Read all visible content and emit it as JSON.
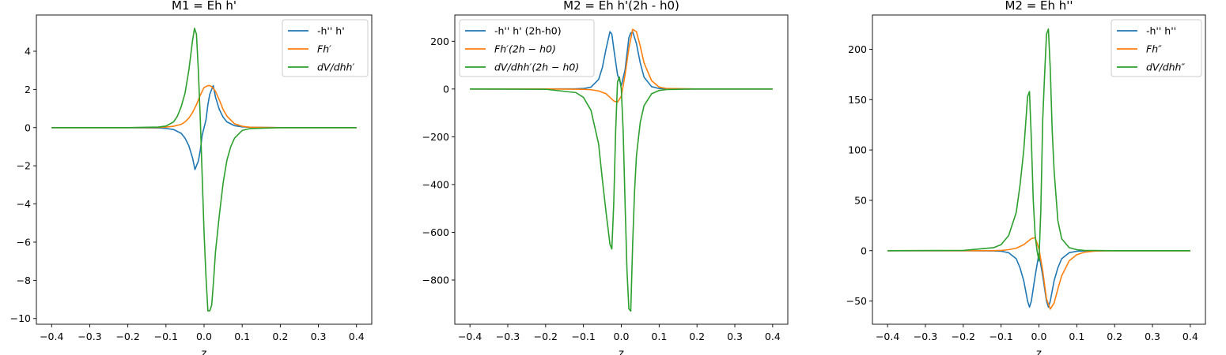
{
  "chart_data": [
    {
      "type": "line",
      "title": "M1 = Eh h'",
      "xlabel": "z",
      "ylabel": "",
      "xlim": [
        -0.44,
        0.44
      ],
      "ylim": [
        -10.3,
        5.9
      ],
      "xticks": [
        -0.4,
        -0.3,
        -0.2,
        -0.1,
        0.0,
        0.1,
        0.2,
        0.3,
        0.4
      ],
      "xtick_labels": [
        "−0.4",
        "−0.3",
        "−0.2",
        "−0.1",
        "0.0",
        "0.1",
        "0.2",
        "0.3",
        "0.4"
      ],
      "yticks": [
        -10,
        -8,
        -6,
        -4,
        -2,
        0,
        2,
        4
      ],
      "ytick_labels": [
        "−10",
        "−8",
        "−6",
        "−4",
        "−2",
        "0",
        "2",
        "4"
      ],
      "legend_position": "top-right",
      "series": [
        {
          "name": "-h'' h'",
          "color": "#1f77b4",
          "x": [
            -0.4,
            -0.2,
            -0.12,
            -0.1,
            -0.08,
            -0.06,
            -0.05,
            -0.04,
            -0.03,
            -0.024,
            -0.02,
            -0.015,
            -0.01,
            -0.005,
            0.0,
            0.005,
            0.01,
            0.015,
            0.02,
            0.024,
            0.03,
            0.04,
            0.05,
            0.06,
            0.08,
            0.1,
            0.12,
            0.2,
            0.4
          ],
          "y": [
            0,
            0,
            -0.02,
            -0.04,
            -0.1,
            -0.3,
            -0.55,
            -0.95,
            -1.6,
            -2.2,
            -2.0,
            -1.75,
            -1.2,
            -0.4,
            0,
            0.4,
            1.2,
            1.75,
            2.0,
            2.2,
            1.6,
            0.95,
            0.55,
            0.3,
            0.1,
            0.04,
            0.02,
            0,
            0
          ]
        },
        {
          "name": "Fh′",
          "color": "#ff7f0e",
          "x": [
            -0.4,
            -0.2,
            -0.12,
            -0.1,
            -0.08,
            -0.06,
            -0.05,
            -0.04,
            -0.03,
            -0.02,
            -0.01,
            0.0,
            0.01,
            0.015,
            0.02,
            0.03,
            0.04,
            0.05,
            0.06,
            0.08,
            0.1,
            0.12,
            0.2,
            0.4
          ],
          "y": [
            0,
            0,
            0.01,
            0.03,
            0.07,
            0.17,
            0.3,
            0.5,
            0.8,
            1.2,
            1.7,
            2.1,
            2.2,
            2.2,
            2.15,
            1.9,
            1.45,
            0.95,
            0.6,
            0.2,
            0.07,
            0.02,
            0,
            0
          ]
        },
        {
          "name": "dV/dhh′",
          "color": "#2ca02c",
          "x": [
            -0.4,
            -0.2,
            -0.12,
            -0.1,
            -0.08,
            -0.07,
            -0.06,
            -0.05,
            -0.04,
            -0.03,
            -0.025,
            -0.02,
            -0.015,
            -0.01,
            -0.005,
            0.0,
            0.005,
            0.01,
            0.015,
            0.02,
            0.025,
            0.03,
            0.04,
            0.05,
            0.06,
            0.07,
            0.08,
            0.1,
            0.12,
            0.2,
            0.4
          ],
          "y": [
            0,
            0,
            0.03,
            0.08,
            0.3,
            0.6,
            1.1,
            1.8,
            3.0,
            4.6,
            5.2,
            4.9,
            3.0,
            0.5,
            -2.5,
            -5.5,
            -7.8,
            -9.6,
            -9.6,
            -9.3,
            -8.0,
            -6.5,
            -4.6,
            -2.9,
            -1.7,
            -1.0,
            -0.55,
            -0.15,
            -0.05,
            0,
            0
          ]
        }
      ]
    },
    {
      "type": "line",
      "title": "M2 = Eh h'(2h - h0)",
      "xlabel": "z",
      "ylabel": "",
      "xlim": [
        -0.44,
        0.44
      ],
      "ylim": [
        -985,
        310
      ],
      "xticks": [
        -0.4,
        -0.3,
        -0.2,
        -0.1,
        0.0,
        0.1,
        0.2,
        0.3,
        0.4
      ],
      "xtick_labels": [
        "−0.4",
        "−0.3",
        "−0.2",
        "−0.1",
        "0.0",
        "0.1",
        "0.2",
        "0.3",
        "0.4"
      ],
      "yticks": [
        -800,
        -600,
        -400,
        -200,
        0,
        200
      ],
      "ytick_labels": [
        "−800",
        "−600",
        "−400",
        "−200",
        "0",
        "200"
      ],
      "legend_position": "top-left",
      "series": [
        {
          "name": "-h'' h' (2h-h0)",
          "color": "#1f77b4",
          "x": [
            -0.4,
            -0.2,
            -0.12,
            -0.1,
            -0.08,
            -0.06,
            -0.05,
            -0.04,
            -0.03,
            -0.025,
            -0.02,
            -0.01,
            0.0,
            0.01,
            0.02,
            0.025,
            0.03,
            0.04,
            0.05,
            0.06,
            0.08,
            0.1,
            0.12,
            0.2,
            0.4
          ],
          "y": [
            0,
            0,
            1,
            2,
            8,
            40,
            90,
            170,
            240,
            230,
            170,
            60,
            15,
            80,
            215,
            235,
            240,
            190,
            110,
            50,
            10,
            2,
            1,
            0,
            0
          ]
        },
        {
          "name": "Fh′(2h − h0)",
          "color": "#ff7f0e",
          "x": [
            -0.4,
            -0.2,
            -0.1,
            -0.08,
            -0.06,
            -0.04,
            -0.03,
            -0.02,
            -0.01,
            0.0,
            0.01,
            0.02,
            0.03,
            0.04,
            0.05,
            0.06,
            0.08,
            0.1,
            0.12,
            0.2,
            0.4
          ],
          "y": [
            0,
            0,
            -1,
            -3,
            -8,
            -20,
            -35,
            -50,
            -55,
            -30,
            60,
            170,
            250,
            240,
            180,
            110,
            35,
            8,
            2,
            0,
            0
          ]
        },
        {
          "name": "dV/dhh′(2h − h0)",
          "color": "#2ca02c",
          "x": [
            -0.4,
            -0.2,
            -0.12,
            -0.1,
            -0.08,
            -0.06,
            -0.05,
            -0.04,
            -0.03,
            -0.025,
            -0.02,
            -0.015,
            -0.01,
            -0.005,
            0.0,
            0.005,
            0.01,
            0.015,
            0.02,
            0.025,
            0.03,
            0.035,
            0.04,
            0.05,
            0.06,
            0.08,
            0.1,
            0.12,
            0.2,
            0.4
          ],
          "y": [
            0,
            -1,
            -15,
            -35,
            -90,
            -230,
            -380,
            -520,
            -650,
            -670,
            -480,
            -180,
            30,
            50,
            0,
            -180,
            -480,
            -760,
            -920,
            -930,
            -650,
            -430,
            -280,
            -140,
            -70,
            -20,
            -6,
            -2,
            0,
            0
          ]
        }
      ]
    },
    {
      "type": "line",
      "title": "M2 = Eh h''",
      "xlabel": "z",
      "ylabel": "",
      "xlim": [
        -0.44,
        0.44
      ],
      "ylim": [
        -73,
        234
      ],
      "xticks": [
        -0.4,
        -0.3,
        -0.2,
        -0.1,
        0.0,
        0.1,
        0.2,
        0.3,
        0.4
      ],
      "xtick_labels": [
        "−0.4",
        "−0.3",
        "−0.2",
        "−0.1",
        "0.0",
        "0.1",
        "0.2",
        "0.3",
        "0.4"
      ],
      "yticks": [
        -50,
        0,
        50,
        100,
        150,
        200
      ],
      "ytick_labels": [
        "−50",
        "0",
        "50",
        "100",
        "150",
        "200"
      ],
      "legend_position": "top-right",
      "series": [
        {
          "name": "-h'' h''",
          "color": "#1f77b4",
          "x": [
            -0.4,
            -0.2,
            -0.12,
            -0.1,
            -0.08,
            -0.06,
            -0.05,
            -0.04,
            -0.03,
            -0.025,
            -0.02,
            -0.01,
            0.0,
            0.01,
            0.02,
            0.025,
            0.03,
            0.04,
            0.05,
            0.06,
            0.08,
            0.1,
            0.12,
            0.2,
            0.4
          ],
          "y": [
            0,
            0,
            -0.2,
            -0.5,
            -2,
            -8,
            -17,
            -30,
            -50,
            -56,
            -50,
            -25,
            -3,
            -25,
            -50,
            -56,
            -50,
            -30,
            -17,
            -8,
            -2,
            -0.5,
            -0.2,
            0,
            0
          ]
        },
        {
          "name": "Fh″",
          "color": "#ff7f0e",
          "x": [
            -0.4,
            -0.2,
            -0.12,
            -0.1,
            -0.08,
            -0.06,
            -0.04,
            -0.03,
            -0.02,
            -0.01,
            0.0,
            0.01,
            0.02,
            0.03,
            0.04,
            0.05,
            0.06,
            0.08,
            0.1,
            0.12,
            0.15,
            0.2,
            0.4
          ],
          "y": [
            0,
            0,
            0.1,
            0.3,
            1,
            2.5,
            6,
            9,
            12,
            13,
            2,
            -20,
            -48,
            -58,
            -52,
            -38,
            -25,
            -10,
            -4,
            -1.5,
            -0.3,
            0,
            0
          ]
        },
        {
          "name": "dV/dhh″",
          "color": "#2ca02c",
          "x": [
            -0.4,
            -0.2,
            -0.12,
            -0.1,
            -0.08,
            -0.06,
            -0.05,
            -0.04,
            -0.03,
            -0.025,
            -0.02,
            -0.015,
            -0.01,
            -0.005,
            0.0,
            0.005,
            0.01,
            0.015,
            0.02,
            0.025,
            0.03,
            0.035,
            0.04,
            0.05,
            0.06,
            0.08,
            0.1,
            0.12,
            0.2,
            0.4
          ],
          "y": [
            0,
            0.3,
            3,
            6,
            15,
            38,
            65,
            100,
            153,
            158,
            110,
            50,
            15,
            0,
            -10,
            40,
            130,
            175,
            215,
            220,
            180,
            120,
            80,
            30,
            12,
            3,
            1,
            0.3,
            0,
            0
          ]
        }
      ]
    }
  ]
}
